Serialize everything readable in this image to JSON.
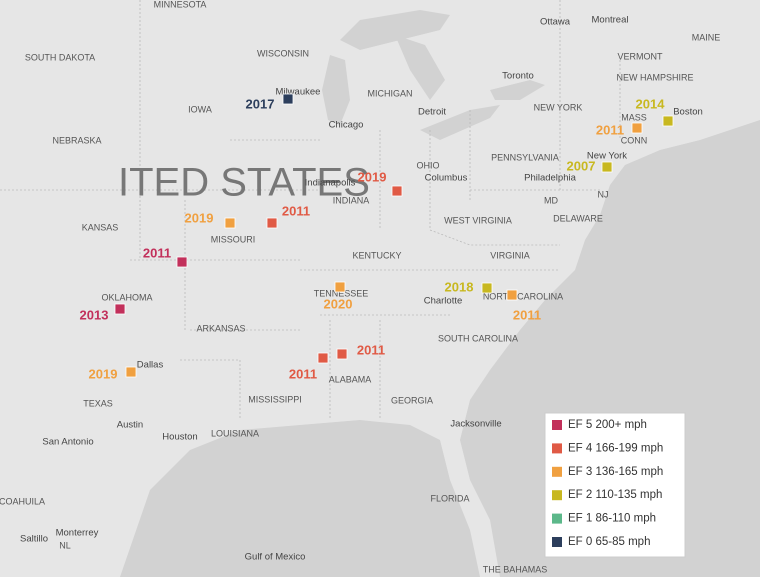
{
  "map_labels": [
    "MINNESOTA",
    "SOUTH DAKOTA",
    "WISCONSIN",
    "Milwaukee",
    "IOWA",
    "MICHIGAN",
    "Detroit",
    "Toronto",
    "Ottawa",
    "Montreal",
    "MAINE",
    "VERMONT",
    "NEW HAMPSHIRE",
    "MASS",
    "Boston",
    "CONN",
    "NEW YORK",
    "New York",
    "PENNSYLVANIA",
    "Philadelphia",
    "NJ",
    "MD",
    "DELAWARE",
    "NEBRASKA",
    "Chicago",
    "OHIO",
    "Columbus",
    "Indianapolis",
    "INDIANA",
    "KANSAS",
    "MISSOURI",
    "WEST VIRGINIA",
    "KENTUCKY",
    "VIRGINIA",
    "OKLAHOMA",
    "TENNESSEE",
    "Charlotte",
    "NORTH CAROLINA",
    "ARKANSAS",
    "SOUTH CAROLINA",
    "Dallas",
    "ALABAMA",
    "MISSISSIPPI",
    "GEORGIA",
    "TEXAS",
    "Austin",
    "Houston",
    "LOUISIANA",
    "San Antonio",
    "Jacksonville",
    "FLORIDA",
    "Gulf of Mexico",
    "COAHUILA",
    "Monterrey",
    "Saltillo",
    "NL",
    "THE BAHAMAS"
  ],
  "country_label": "ITED STATES",
  "markers": [
    {
      "label": "2017",
      "color": "#2c3e5c"
    },
    {
      "label": "2019",
      "color": "#e05a45"
    },
    {
      "label": "2011",
      "color": "#e05a45"
    },
    {
      "label": "2019",
      "color": "#f0a040"
    },
    {
      "label": "2011",
      "color": "#c2305b"
    },
    {
      "label": "2013",
      "color": "#c2305b"
    },
    {
      "label": "2020",
      "color": "#f0a040"
    },
    {
      "label": "2018",
      "color": "#c8b820"
    },
    {
      "label": "2011",
      "color": "#f0a040"
    },
    {
      "label": "2011",
      "color": "#e05a45"
    },
    {
      "label": "2011",
      "color": "#e05a45"
    },
    {
      "label": "2019",
      "color": "#f0a040"
    },
    {
      "label": "2014",
      "color": "#c8b820"
    },
    {
      "label": "2011",
      "color": "#f0a040"
    },
    {
      "label": "2007",
      "color": "#c8b820"
    }
  ],
  "legend": [
    {
      "label": "EF 5 200+ mph",
      "color": "#c2305b"
    },
    {
      "label": "EF 4 166-199 mph",
      "color": "#e05a45"
    },
    {
      "label": "EF 3 136-165 mph",
      "color": "#f0a040"
    },
    {
      "label": "EF 2 110-135 mph",
      "color": "#c8b820"
    },
    {
      "label": "EF 1 86-110 mph",
      "color": "#5cb88a"
    },
    {
      "label": "EF 0 65-85 mph",
      "color": "#2c3e5c"
    }
  ]
}
